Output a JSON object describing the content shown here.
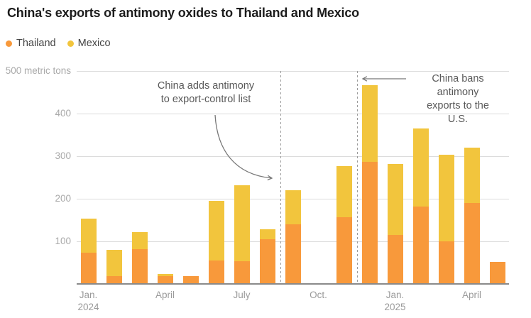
{
  "title": "China's exports of antimony oxides to Thailand and Mexico",
  "legend": {
    "thailand": "Thailand",
    "mexico": "Mexico"
  },
  "colors": {
    "thailand": "#F8993B",
    "mexico": "#F2C53D",
    "gridline": "#dcdcdc",
    "baseline": "#8a8a8a",
    "annotation_line": "#777777"
  },
  "annotations": {
    "export_control": {
      "line1": "China adds antimony",
      "line2": "to export-control list"
    },
    "us_ban": {
      "line1": "China bans antimony",
      "line2": "exports to the U.S."
    }
  },
  "chart_data": {
    "type": "bar",
    "stacked": true,
    "title": "China's exports of antimony oxides to Thailand and Mexico",
    "ylabel": "metric tons",
    "xlabel": "",
    "ylim": [
      0,
      500
    ],
    "y_ticks": [
      100,
      200,
      300,
      400,
      500
    ],
    "y_top_label": "500 metric tons",
    "grid": "horizontal",
    "legend_position": "top-left",
    "categories": [
      "Jan. 2024",
      "Feb. 2024",
      "March 2024",
      "April 2024",
      "May 2024",
      "June 2024",
      "July 2024",
      "Aug. 2024",
      "Sept. 2024",
      "Oct. 2024",
      "Nov. 2024",
      "Dec. 2024",
      "Jan. 2025",
      "Feb. 2025",
      "March 2025",
      "April 2025",
      "May 2025"
    ],
    "series": [
      {
        "name": "Thailand",
        "color": "#F8993B",
        "values": [
          73,
          19,
          82,
          18,
          18,
          55,
          53,
          105,
          140,
          0,
          157,
          286,
          115,
          182,
          100,
          190,
          51
        ]
      },
      {
        "name": "Mexico",
        "color": "#F2C53D",
        "values": [
          81,
          61,
          40,
          5,
          0,
          140,
          178,
          24,
          80,
          0,
          119,
          181,
          166,
          183,
          203,
          130,
          0
        ]
      }
    ],
    "x_tick_labels": [
      {
        "index": 0,
        "line1": "Jan.",
        "line2": "2024"
      },
      {
        "index": 3,
        "line1": "April",
        "line2": ""
      },
      {
        "index": 6,
        "line1": "July",
        "line2": ""
      },
      {
        "index": 9,
        "line1": "Oct.",
        "line2": ""
      },
      {
        "index": 12,
        "line1": "Jan.",
        "line2": "2025"
      },
      {
        "index": 15,
        "line1": "April",
        "line2": ""
      }
    ],
    "event_lines": [
      {
        "between_categories": [
          "Aug. 2024",
          "Sept. 2024"
        ],
        "label": "China adds antimony to export-control list"
      },
      {
        "between_categories": [
          "Nov. 2024",
          "Dec. 2024"
        ],
        "label": "China bans antimony exports to the U.S."
      }
    ]
  }
}
